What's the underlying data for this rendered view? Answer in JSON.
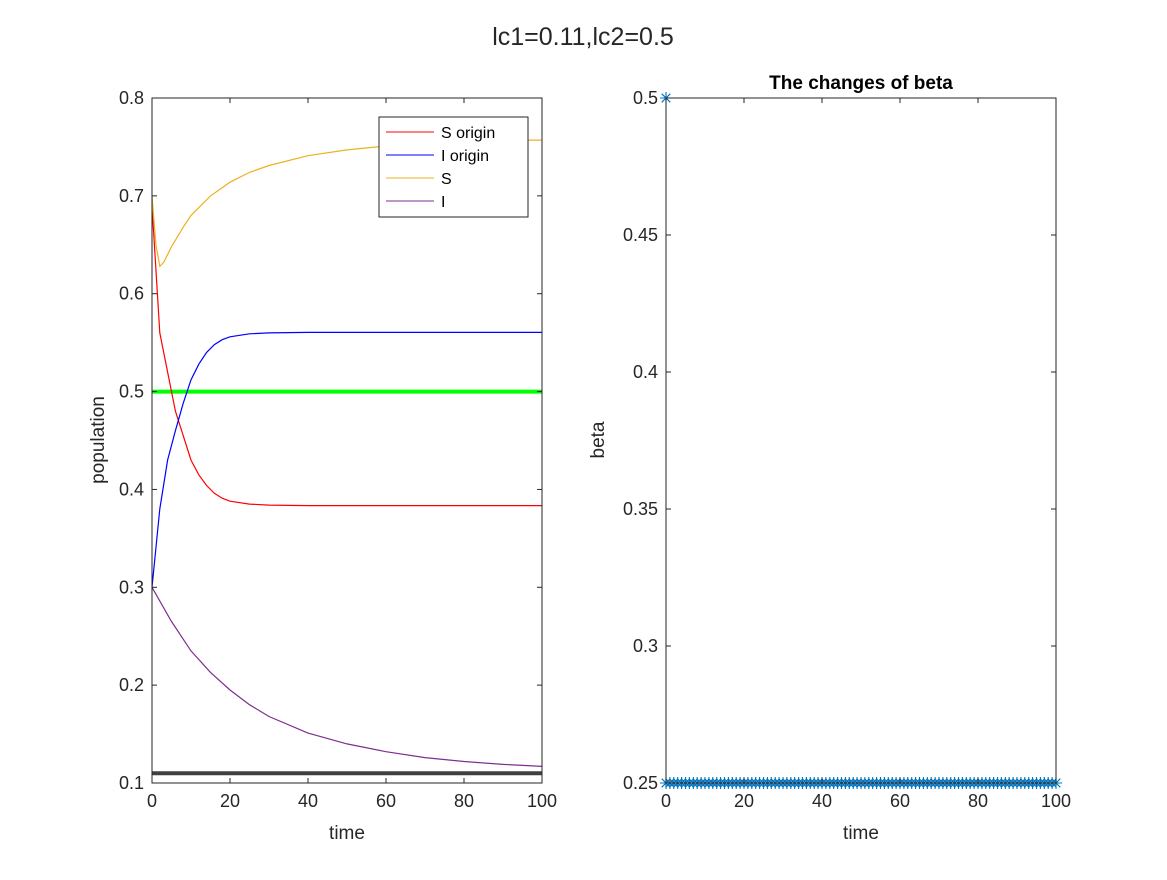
{
  "figure": {
    "suptitle": "lc1=0.11,lc2=0.5"
  },
  "chart_data": [
    {
      "type": "line",
      "title": "",
      "xlabel": "time",
      "ylabel": "population",
      "xlim": [
        0,
        100
      ],
      "ylim": [
        0.1,
        0.8
      ],
      "xticks": [
        0,
        20,
        40,
        60,
        80,
        100
      ],
      "yticks": [
        0.1,
        0.2,
        0.3,
        0.4,
        0.5,
        0.6,
        0.7,
        0.8
      ],
      "xtick_labels": [
        "0",
        "20",
        "40",
        "60",
        "80",
        "100"
      ],
      "ytick_labels": [
        "0.1",
        "0.2",
        "0.3",
        "0.4",
        "0.5",
        "0.6",
        "0.7",
        "0.8"
      ],
      "grid": false,
      "legend_position": "top-right",
      "series": [
        {
          "name": "S origin",
          "color": "#ff0000",
          "x": [
            0,
            2,
            4,
            6,
            8,
            10,
            12,
            14,
            16,
            18,
            20,
            25,
            30,
            40,
            50,
            60,
            70,
            80,
            90,
            100
          ],
          "y": [
            0.69,
            0.56,
            0.52,
            0.48,
            0.455,
            0.43,
            0.415,
            0.404,
            0.396,
            0.391,
            0.388,
            0.385,
            0.384,
            0.3835,
            0.3835,
            0.3835,
            0.3835,
            0.3835,
            0.3835,
            0.3835
          ]
        },
        {
          "name": "I origin",
          "color": "#0000ff",
          "x": [
            0,
            2,
            4,
            6,
            8,
            10,
            12,
            14,
            16,
            18,
            20,
            25,
            30,
            40,
            50,
            60,
            70,
            80,
            90,
            100
          ],
          "y": [
            0.3,
            0.38,
            0.43,
            0.46,
            0.488,
            0.512,
            0.528,
            0.54,
            0.548,
            0.553,
            0.556,
            0.559,
            0.56,
            0.5605,
            0.5605,
            0.5605,
            0.5605,
            0.5605,
            0.5605,
            0.5605
          ]
        },
        {
          "name": "S",
          "color": "#edb120",
          "x": [
            0,
            1,
            2,
            3,
            5,
            8,
            10,
            15,
            20,
            25,
            30,
            40,
            50,
            60,
            70,
            80,
            90,
            100
          ],
          "y": [
            0.7,
            0.65,
            0.628,
            0.632,
            0.648,
            0.668,
            0.68,
            0.7,
            0.714,
            0.724,
            0.731,
            0.741,
            0.747,
            0.751,
            0.754,
            0.756,
            0.757,
            0.757
          ]
        },
        {
          "name": "I",
          "color": "#7e2f8e",
          "x": [
            0,
            5,
            10,
            15,
            20,
            25,
            30,
            40,
            50,
            60,
            70,
            80,
            90,
            100
          ],
          "y": [
            0.3,
            0.265,
            0.235,
            0.213,
            0.195,
            0.18,
            0.168,
            0.151,
            0.14,
            0.132,
            0.126,
            0.122,
            0.119,
            0.117
          ]
        }
      ],
      "reference_lines": [
        {
          "y": 0.5,
          "color": "#00ff00"
        },
        {
          "y": 0.11,
          "color": "#404040"
        }
      ]
    },
    {
      "type": "scatter",
      "title": "The changes of beta",
      "xlabel": "time",
      "ylabel": "beta",
      "xlim": [
        0,
        100
      ],
      "ylim": [
        0.25,
        0.5
      ],
      "xticks": [
        0,
        20,
        40,
        60,
        80,
        100
      ],
      "yticks": [
        0.25,
        0.3,
        0.35,
        0.4,
        0.45,
        0.5
      ],
      "xtick_labels": [
        "0",
        "20",
        "40",
        "60",
        "80",
        "100"
      ],
      "ytick_labels": [
        "0.25",
        "0.3",
        "0.35",
        "0.4",
        "0.45",
        "0.5"
      ],
      "grid": false,
      "marker": "asterisk",
      "color": "#0072bd",
      "points": {
        "x": [
          0,
          0,
          1,
          2,
          3,
          4,
          5,
          6,
          7,
          8,
          9,
          10,
          11,
          12,
          13,
          14,
          15,
          16,
          17,
          18,
          19,
          20,
          21,
          22,
          23,
          24,
          25,
          26,
          27,
          28,
          29,
          30,
          31,
          32,
          33,
          34,
          35,
          36,
          37,
          38,
          39,
          40,
          41,
          42,
          43,
          44,
          45,
          46,
          47,
          48,
          49,
          50,
          51,
          52,
          53,
          54,
          55,
          56,
          57,
          58,
          59,
          60,
          61,
          62,
          63,
          64,
          65,
          66,
          67,
          68,
          69,
          70,
          71,
          72,
          73,
          74,
          75,
          76,
          77,
          78,
          79,
          80,
          81,
          82,
          83,
          84,
          85,
          86,
          87,
          88,
          89,
          90,
          91,
          92,
          93,
          94,
          95,
          96,
          97,
          98,
          99,
          100
        ],
        "y": [
          0.5,
          0.25,
          0.25,
          0.25,
          0.25,
          0.25,
          0.25,
          0.25,
          0.25,
          0.25,
          0.25,
          0.25,
          0.25,
          0.25,
          0.25,
          0.25,
          0.25,
          0.25,
          0.25,
          0.25,
          0.25,
          0.25,
          0.25,
          0.25,
          0.25,
          0.25,
          0.25,
          0.25,
          0.25,
          0.25,
          0.25,
          0.25,
          0.25,
          0.25,
          0.25,
          0.25,
          0.25,
          0.25,
          0.25,
          0.25,
          0.25,
          0.25,
          0.25,
          0.25,
          0.25,
          0.25,
          0.25,
          0.25,
          0.25,
          0.25,
          0.25,
          0.25,
          0.25,
          0.25,
          0.25,
          0.25,
          0.25,
          0.25,
          0.25,
          0.25,
          0.25,
          0.25,
          0.25,
          0.25,
          0.25,
          0.25,
          0.25,
          0.25,
          0.25,
          0.25,
          0.25,
          0.25,
          0.25,
          0.25,
          0.25,
          0.25,
          0.25,
          0.25,
          0.25,
          0.25,
          0.25,
          0.25,
          0.25,
          0.25,
          0.25,
          0.25,
          0.25,
          0.25,
          0.25,
          0.25,
          0.25,
          0.25,
          0.25,
          0.25,
          0.25,
          0.25,
          0.25,
          0.25,
          0.25,
          0.25,
          0.25,
          0.25
        ]
      }
    }
  ]
}
